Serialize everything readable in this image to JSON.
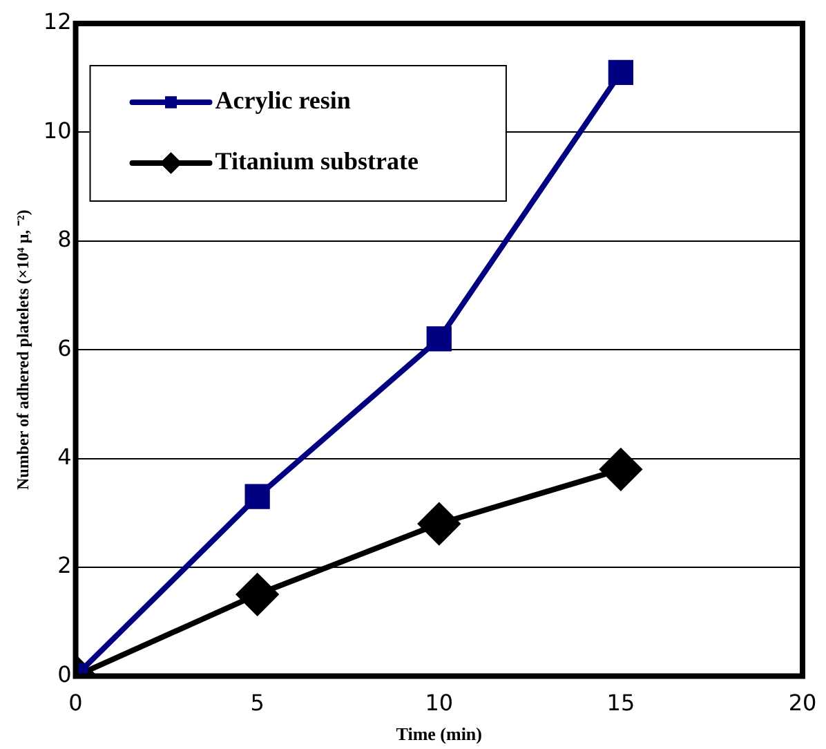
{
  "chart_data": {
    "type": "line",
    "xlabel": "Time (min)",
    "ylabel": "Number of adhered platelets (×10⁴ μ, ⁻²)",
    "x": [
      0,
      5,
      10,
      15
    ],
    "series": [
      {
        "name": "Acrylic resin",
        "color": "#000080",
        "marker": "square",
        "values": [
          0,
          3.3,
          6.2,
          11.1
        ]
      },
      {
        "name": "Titanium substrate",
        "color": "#000000",
        "marker": "diamond",
        "values": [
          0,
          1.5,
          2.8,
          3.8
        ]
      }
    ],
    "xlim": [
      0,
      20
    ],
    "xticks": [
      0,
      5,
      10,
      15,
      20
    ],
    "ylim": [
      0,
      12
    ],
    "yticks": [
      0,
      2,
      4,
      6,
      8,
      10,
      12
    ],
    "grid": "y",
    "legend": "top left",
    "line_style": "solid"
  }
}
